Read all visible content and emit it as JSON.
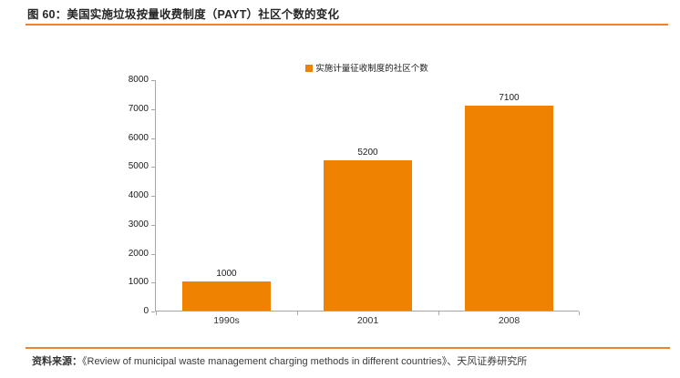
{
  "header": {
    "title": "图 60：美国实施垃圾按量收费制度（PAYT）社区个数的变化"
  },
  "chart_data": {
    "type": "bar",
    "categories": [
      "1990s",
      "2001",
      "2008"
    ],
    "values": [
      1000,
      5200,
      7100
    ],
    "legend": [
      "实施计量征收制度的社区个数"
    ],
    "title": "",
    "xlabel": "",
    "ylabel": "",
    "ylim": [
      0,
      8000
    ],
    "ytick_step": 1000,
    "grid": false,
    "legend_position": "top-center",
    "data_labels": true
  },
  "footer": {
    "source_label": "资料来源：",
    "source_text": "《Review of municipal waste management charging methods in different countries》、天风证券研究所"
  },
  "colors": {
    "accent_rule": "#F08130",
    "bar": "#EF8200",
    "axis": "#A6A6A6",
    "title_text": "#262626",
    "label_text": "#1A1A1A"
  }
}
